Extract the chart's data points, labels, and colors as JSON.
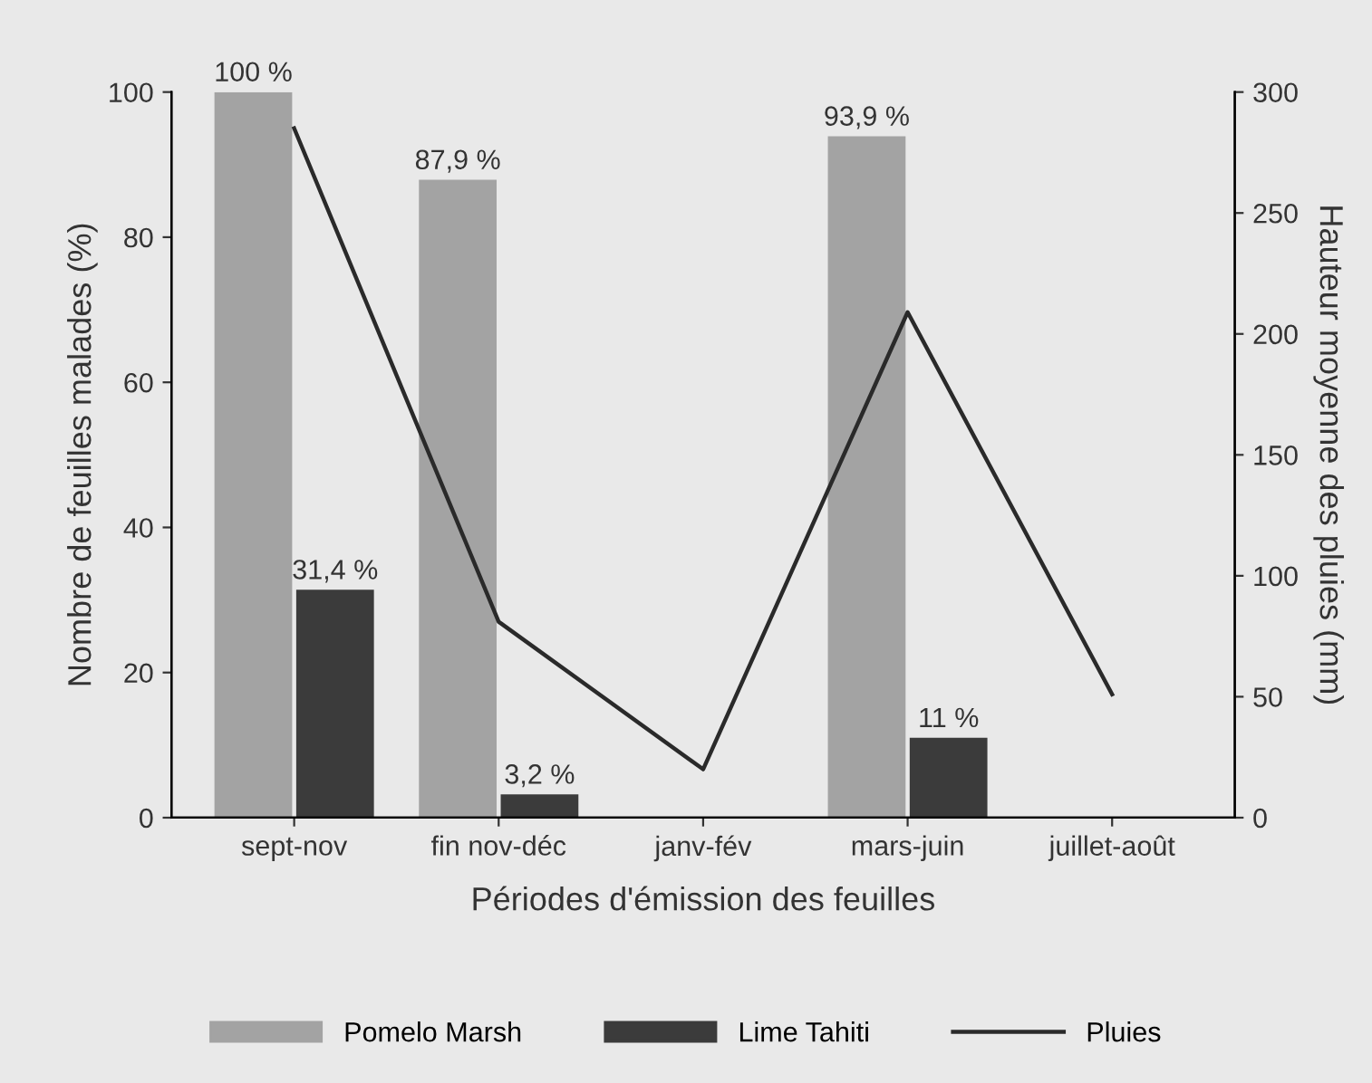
{
  "chart_data": {
    "type": "bar",
    "xlabel": "Périodes d'émission des feuilles",
    "ylabel": "Nombre de feuilles malades (%)",
    "y2label": "Hauteur moyenne des pluies (mm)",
    "categories": [
      "sept-nov",
      "fin nov-déc",
      "janv-fév",
      "mars-juin",
      "juillet-août"
    ],
    "series": [
      {
        "name": "Pomelo Marsh",
        "color": "#a3a3a3",
        "values": [
          100,
          87.9,
          null,
          93.9,
          null
        ],
        "value_labels": [
          "100 %",
          "87,9 %",
          null,
          "93,9 %",
          null
        ]
      },
      {
        "name": "Lime Tahiti",
        "color": "#3b3b3b",
        "values": [
          31.4,
          3.2,
          null,
          11,
          null
        ],
        "value_labels": [
          "31,4 %",
          "3,2 %",
          null,
          "11 %",
          null
        ]
      },
      {
        "name": "Pluies",
        "type": "line",
        "axis": "y2",
        "color": "#2a2a2a",
        "values": [
          285,
          81,
          20,
          209,
          51
        ]
      }
    ],
    "ylim": [
      0,
      100
    ],
    "yticks": [
      0,
      20,
      40,
      60,
      80,
      100
    ],
    "y2lim": [
      0,
      300
    ],
    "y2ticks": [
      0,
      50,
      100,
      150,
      200,
      250,
      300
    ],
    "grid": false,
    "legend": "bottom",
    "line_style": "solid",
    "marker": "none"
  }
}
